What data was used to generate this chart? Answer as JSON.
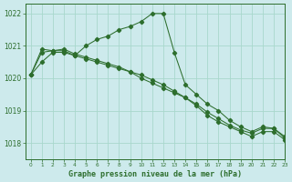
{
  "xlabel": "Graphe pression niveau de la mer (hPa)",
  "xlim": [
    -0.5,
    23
  ],
  "ylim": [
    1017.5,
    1022.3
  ],
  "yticks": [
    1018,
    1019,
    1020,
    1021,
    1022
  ],
  "xticks": [
    0,
    1,
    2,
    3,
    4,
    5,
    6,
    7,
    8,
    9,
    10,
    11,
    12,
    13,
    14,
    15,
    16,
    17,
    18,
    19,
    20,
    21,
    22,
    23
  ],
  "background_color": "#cdeaec",
  "grid_color": "#a8d8cc",
  "line_color": "#2d6e2d",
  "series": [
    {
      "x": [
        0,
        1,
        2,
        3,
        4,
        5,
        6,
        7,
        8,
        9,
        10,
        11,
        12,
        13,
        14,
        15,
        16,
        17,
        18,
        19,
        20,
        21,
        22,
        23
      ],
      "y": [
        1020.1,
        1020.5,
        1020.8,
        1020.8,
        1020.7,
        1021.0,
        1021.2,
        1021.3,
        1021.5,
        1021.6,
        1021.75,
        1022.0,
        1022.0,
        1020.8,
        1019.8,
        1019.5,
        1019.2,
        1019.0,
        1018.7,
        1018.5,
        1018.35,
        1018.5,
        1018.45,
        1018.15
      ]
    },
    {
      "x": [
        0,
        1,
        2,
        3,
        4,
        5,
        6,
        7,
        8,
        9,
        10,
        11,
        12,
        13,
        14,
        15,
        16,
        17,
        18,
        19,
        20,
        21,
        22,
        23
      ],
      "y": [
        1020.1,
        1020.9,
        1020.85,
        1020.85,
        1020.7,
        1020.6,
        1020.5,
        1020.4,
        1020.3,
        1020.2,
        1020.0,
        1019.85,
        1019.7,
        1019.55,
        1019.4,
        1019.2,
        1018.95,
        1018.75,
        1018.55,
        1018.4,
        1018.3,
        1018.45,
        1018.45,
        1018.2
      ]
    },
    {
      "x": [
        0,
        1,
        2,
        3,
        4,
        5,
        6,
        7,
        8,
        9,
        10,
        11,
        12,
        13,
        14,
        15,
        16,
        17,
        18,
        19,
        20,
        21,
        22,
        23
      ],
      "y": [
        1020.1,
        1020.8,
        1020.85,
        1020.9,
        1020.75,
        1020.65,
        1020.55,
        1020.45,
        1020.35,
        1020.2,
        1020.1,
        1019.95,
        1019.8,
        1019.6,
        1019.4,
        1019.15,
        1018.85,
        1018.65,
        1018.5,
        1018.35,
        1018.2,
        1018.35,
        1018.35,
        1018.1
      ]
    }
  ]
}
